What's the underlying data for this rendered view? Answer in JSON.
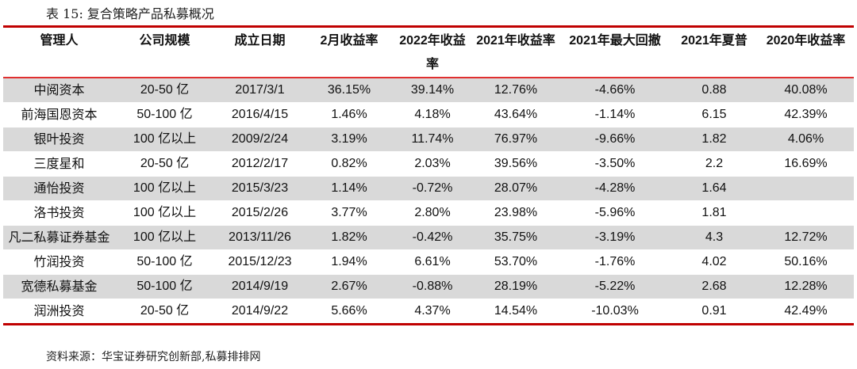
{
  "title": "表 15: 复合策略产品私募概况",
  "table": {
    "headers": [
      "管理人",
      "公司规模",
      "成立日期",
      "2月收益率",
      "2022年收益率",
      "2021年收益率",
      "2021年最大回撤",
      "2021年夏普",
      "2020年收益率"
    ],
    "rows": [
      [
        "中阅资本",
        "20-50 亿",
        "2017/3/1",
        "36.15%",
        "39.14%",
        "12.76%",
        "-4.66%",
        "0.88",
        "40.08%"
      ],
      [
        "前海国恩资本",
        "50-100 亿",
        "2016/4/15",
        "1.46%",
        "4.18%",
        "43.64%",
        "-1.14%",
        "6.15",
        "42.39%"
      ],
      [
        "银叶投资",
        "100 亿以上",
        "2009/2/24",
        "3.19%",
        "11.74%",
        "76.97%",
        "-9.66%",
        "1.82",
        "4.06%"
      ],
      [
        "三度星和",
        "20-50 亿",
        "2012/2/17",
        "0.82%",
        "2.03%",
        "39.56%",
        "-3.50%",
        "2.2",
        "16.69%"
      ],
      [
        "通怡投资",
        "100 亿以上",
        "2015/3/23",
        "1.14%",
        "-0.72%",
        "28.07%",
        "-4.28%",
        "1.64",
        ""
      ],
      [
        "洛书投资",
        "100 亿以上",
        "2015/2/26",
        "3.77%",
        "2.80%",
        "23.98%",
        "-5.96%",
        "1.81",
        ""
      ],
      [
        "凡二私募证券基金",
        "100 亿以上",
        "2013/11/26",
        "1.82%",
        "-0.42%",
        "35.75%",
        "-3.19%",
        "4.3",
        "12.72%"
      ],
      [
        "竹润投资",
        "50-100 亿",
        "2015/12/23",
        "1.94%",
        "6.61%",
        "53.70%",
        "-1.76%",
        "4.02",
        "50.16%"
      ],
      [
        "宽德私募基金",
        "50-100 亿",
        "2014/9/19",
        "2.67%",
        "-0.88%",
        "28.19%",
        "-5.22%",
        "2.68",
        "12.28%"
      ],
      [
        "润洲投资",
        "20-50 亿",
        "2014/9/22",
        "5.66%",
        "4.37%",
        "14.54%",
        "-10.03%",
        "0.91",
        "42.49%"
      ]
    ]
  },
  "source": "资料来源：华宝证券研究创新部,私募排排网",
  "colors": {
    "accent_red": "#c00000",
    "row_shade": "#d9d9d9"
  }
}
